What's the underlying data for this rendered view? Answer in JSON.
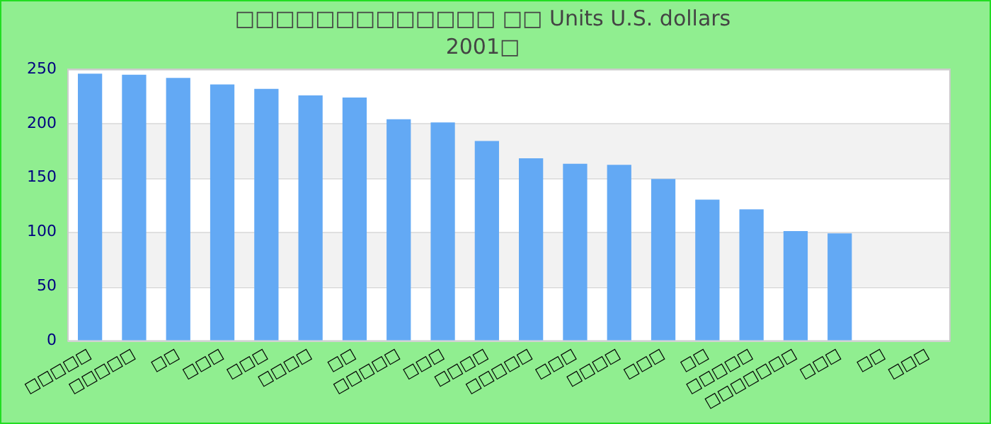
{
  "chart_data": {
    "type": "bar",
    "title": "□□□□□□□□□□□□□ □□ Units U.S. dollars",
    "subtitle": "2001□",
    "categories": [
      "□□□□□",
      "□□□□□",
      "□□",
      "□□□",
      "□□□",
      "□□□□",
      "□□",
      "□□□□□",
      "□□□",
      "□□□□",
      "□□□□□",
      "□□□",
      "□□□□",
      "□□□",
      "□□",
      "□□□□□",
      "□□□□□□□",
      "□□□",
      "□□",
      "□□□"
    ],
    "values": [
      246,
      245,
      242,
      236,
      232,
      226,
      224,
      204,
      201,
      184,
      168,
      163,
      162,
      149,
      130,
      121,
      101,
      99,
      null,
      null
    ],
    "color": "#63a9f4",
    "ylim": [
      0,
      250
    ],
    "yticks": [
      0,
      50,
      100,
      150,
      200,
      250
    ],
    "grid": "y",
    "legend": false
  }
}
